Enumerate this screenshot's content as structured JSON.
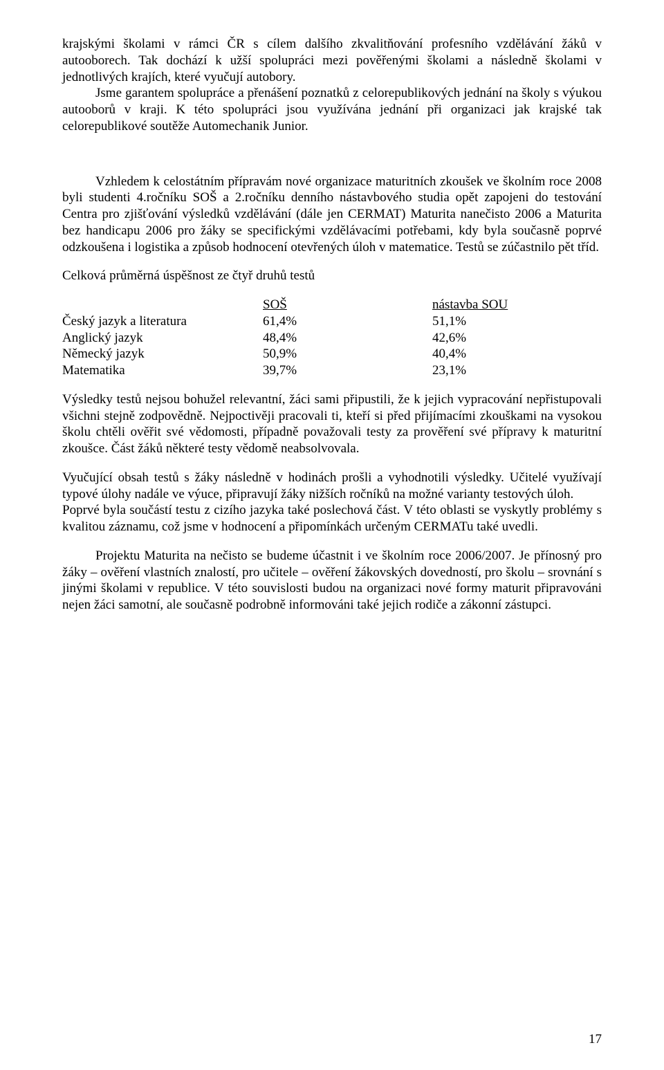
{
  "para1": "krajskými školami v rámci ČR s cílem dalšího zkvalitňování profesního vzdělávání žáků v autooborech.  Tak dochází  k užší spolupráci mezi pověřenými školami a následně školami v jednotlivých krajích, které vyučují autobory.",
  "para1b": "Jsme garantem spolupráce a přenášení poznatků z celorepublikových jednání na školy s výukou autooborů v kraji.  K této spolupráci jsou využívána jednání   při organizaci jak krajské tak celorepublikové soutěže Automechanik Junior.",
  "para2": "Vzhledem k celostátním přípravám nové organizace maturitních zkoušek ve školním roce 2008 byli studenti 4.ročníku SOŠ a 2.ročníku denního nástavbového studia opět zapojeni do testování Centra pro zjišťování výsledků vzdělávání (dále jen CERMAT) Maturita nanečisto 2006 a Maturita bez handicapu 2006 pro žáky se specifickými vzdělávacími potřebami, kdy byla současně poprvé odzkoušena i logistika a způsob hodnocení otevřených úloh v matematice. Testů se zúčastnilo pět tříd.",
  "tableTitle": "Celková průměrná úspěšnost ze čtyř druhů testů",
  "headers": {
    "sos": "SOŠ",
    "nast": "nástavba SOU"
  },
  "rows": [
    {
      "label": "Český jazyk a literatura",
      "sos": "61,4%",
      "nast": "51,1%"
    },
    {
      "label": "Anglický jazyk",
      "sos": "48,4%",
      "nast": "42,6%"
    },
    {
      "label": "Německý jazyk",
      "sos": "50,9%",
      "nast": "40,4%"
    },
    {
      "label": "Matematika",
      "sos": "39,7%",
      "nast": "23,1%"
    }
  ],
  "para3": "Výsledky testů nejsou bohužel relevantní, žáci sami připustili, že k jejich vypracování nepřistupovali všichni stejně zodpovědně. Nejpoctivěji pracovali ti, kteří si před přijímacími zkouškami na vysokou školu chtěli ověřit své vědomosti, případně považovali testy za prověření své přípravy k maturitní zkoušce. Část žáků některé testy vědomě neabsolvovala.",
  "para4": "Vyučující obsah testů s žáky následně v hodinách prošli a vyhodnotili výsledky. Učitelé využívají typové úlohy nadále ve výuce, připravují žáky nižších ročníků na možné varianty testových úloh.",
  "para5": "Poprvé byla součástí testu z cizího jazyka také poslechová část. V této oblasti se vyskytly problémy s kvalitou záznamu, což jsme v hodnocení a připomínkách určeným CERMATu také uvedli.",
  "para6": "Projektu Maturita na nečisto se budeme účastnit i ve školním roce 2006/2007. Je přínosný pro žáky – ověření vlastních znalostí, pro učitele – ověření žákovských dovedností, pro školu – srovnání s jinými školami v republice.  V této souvislosti budou na organizaci nové formy maturit připravováni nejen žáci samotní, ale současně podrobně informováni také jejich rodiče a zákonní zástupci.",
  "pageNumber": "17"
}
